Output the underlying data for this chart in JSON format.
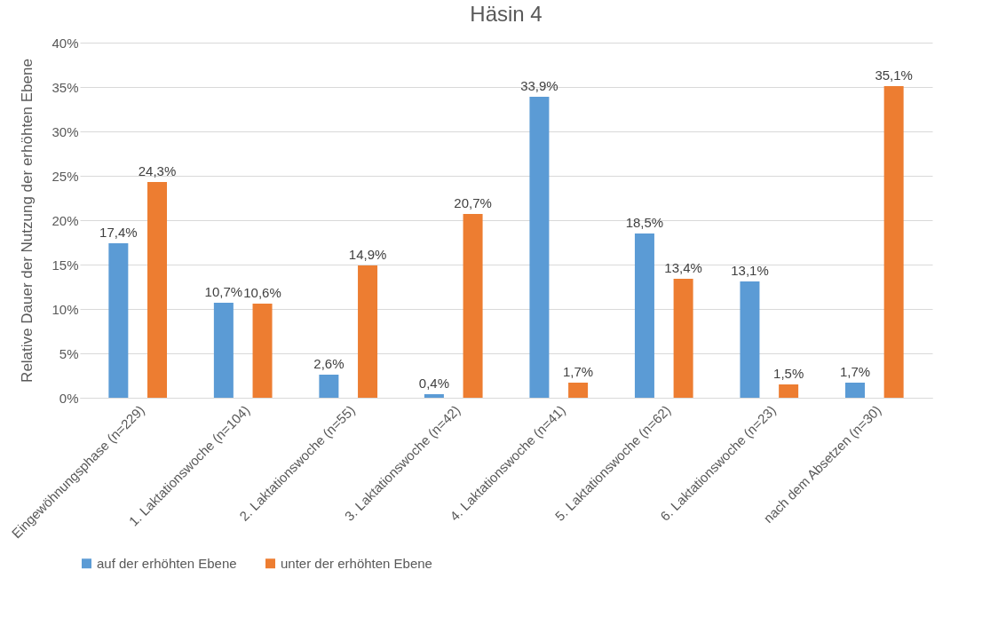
{
  "chart_data": {
    "type": "bar",
    "title": "Häsin 4",
    "ylabel": "Relative Dauer der Nutzung der erhöhten Ebene",
    "categories": [
      "Eingewöhnungsphase (n=229)",
      "1. Laktationswoche (n=104)",
      "2. Laktationswoche (n=55)",
      "3. Laktationswoche (n=42)",
      "4. Laktationswoche (n=41)",
      "5. Laktationswoche (n=62)",
      "6. Laktationswoche (n=23)",
      "nach dem Absetzen (n=30)"
    ],
    "series": [
      {
        "name": "auf der erhöhten Ebene",
        "color": "#5b9bd5",
        "values": [
          17.4,
          10.7,
          2.6,
          0.4,
          33.9,
          18.5,
          13.1,
          1.7
        ],
        "value_labels": [
          "17,4%",
          "10,7%",
          "2,6%",
          "0,4%",
          "33,9%",
          "18,5%",
          "13,1%",
          "1,7%"
        ]
      },
      {
        "name": "unter der erhöhten Ebene",
        "color": "#ed7d31",
        "values": [
          24.3,
          10.6,
          14.9,
          20.7,
          1.7,
          13.4,
          1.5,
          35.1
        ],
        "value_labels": [
          "24,3%",
          "10,6%",
          "14,9%",
          "20,7%",
          "1,7%",
          "13,4%",
          "1,5%",
          "35,1%"
        ]
      }
    ],
    "ylim": [
      0,
      40
    ],
    "yticks": [
      {
        "value": 0,
        "label": "0%"
      },
      {
        "value": 5,
        "label": "5%"
      },
      {
        "value": 10,
        "label": "10%"
      },
      {
        "value": 15,
        "label": "15%"
      },
      {
        "value": 20,
        "label": "20%"
      },
      {
        "value": 25,
        "label": "25%"
      },
      {
        "value": 30,
        "label": "30%"
      },
      {
        "value": 35,
        "label": "35%"
      },
      {
        "value": 40,
        "label": "40%"
      }
    ],
    "grid": "y",
    "legend": "bottom"
  }
}
